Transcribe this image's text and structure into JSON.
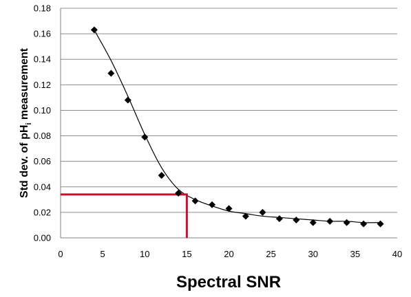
{
  "chart_data": {
    "type": "scatter",
    "xlabel": "Spectral SNR",
    "ylabel": {
      "prefix": "Std dev. of pH",
      "subscript": "i",
      "suffix": " measurement"
    },
    "xlim": [
      0,
      40
    ],
    "ylim": [
      0,
      0.18
    ],
    "x_ticks": [
      "0",
      "5",
      "10",
      "15",
      "20",
      "25",
      "30",
      "35",
      "40"
    ],
    "y_ticks": [
      "0.00",
      "0.02",
      "0.04",
      "0.06",
      "0.08",
      "0.10",
      "0.12",
      "0.14",
      "0.16",
      "0.18"
    ],
    "grid": {
      "horizontal": true,
      "vertical": false
    },
    "series": [
      {
        "marker": "diamond",
        "color": "#000000",
        "points": [
          {
            "x": 4,
            "y": 0.163
          },
          {
            "x": 6,
            "y": 0.129
          },
          {
            "x": 8,
            "y": 0.108
          },
          {
            "x": 10,
            "y": 0.079
          },
          {
            "x": 12,
            "y": 0.049
          },
          {
            "x": 14,
            "y": 0.035
          },
          {
            "x": 16,
            "y": 0.029
          },
          {
            "x": 18,
            "y": 0.026
          },
          {
            "x": 20,
            "y": 0.023
          },
          {
            "x": 22,
            "y": 0.017
          },
          {
            "x": 24,
            "y": 0.02
          },
          {
            "x": 26,
            "y": 0.015
          },
          {
            "x": 28,
            "y": 0.014
          },
          {
            "x": 30,
            "y": 0.012
          },
          {
            "x": 32,
            "y": 0.013
          },
          {
            "x": 34,
            "y": 0.012
          },
          {
            "x": 36,
            "y": 0.011
          },
          {
            "x": 38,
            "y": 0.011
          }
        ]
      }
    ],
    "trendline": {
      "color": "#000000",
      "points": [
        {
          "x": 4,
          "y": 0.163
        },
        {
          "x": 6,
          "y": 0.139
        },
        {
          "x": 8,
          "y": 0.111
        },
        {
          "x": 10,
          "y": 0.081
        },
        {
          "x": 12,
          "y": 0.055
        },
        {
          "x": 14,
          "y": 0.038
        },
        {
          "x": 16,
          "y": 0.03
        },
        {
          "x": 18,
          "y": 0.025
        },
        {
          "x": 20,
          "y": 0.021
        },
        {
          "x": 22,
          "y": 0.019
        },
        {
          "x": 24,
          "y": 0.017
        },
        {
          "x": 26,
          "y": 0.016
        },
        {
          "x": 28,
          "y": 0.015
        },
        {
          "x": 30,
          "y": 0.014
        },
        {
          "x": 32,
          "y": 0.013
        },
        {
          "x": 34,
          "y": 0.013
        },
        {
          "x": 36,
          "y": 0.012
        },
        {
          "x": 38,
          "y": 0.012
        }
      ]
    },
    "reference_lines": {
      "color": "#c8102e",
      "x": 15,
      "y": 0.034
    }
  }
}
